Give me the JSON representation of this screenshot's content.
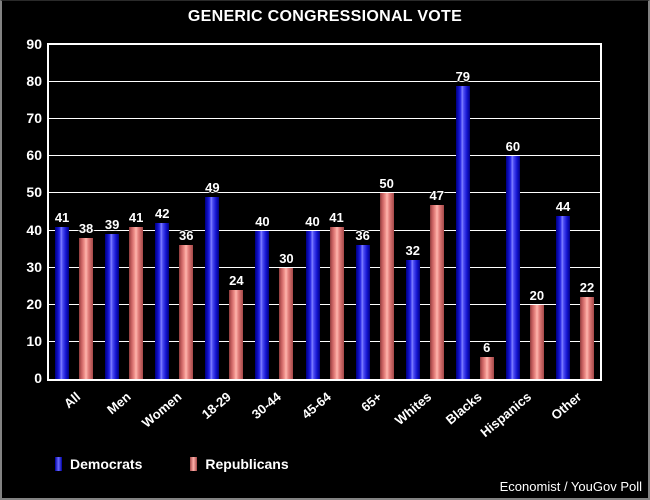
{
  "window": {
    "background": "#000000",
    "border_color": "#828282"
  },
  "chart_data": {
    "type": "bar",
    "title": "GENERIC CONGRESSIONAL VOTE",
    "categories": [
      "All",
      "Men",
      "Women",
      "18-29",
      "30-44",
      "45-64",
      "65+",
      "Whites",
      "Blacks",
      "Hispanics",
      "Other"
    ],
    "series": [
      {
        "name": "Democrats",
        "color": "#1a1ae0",
        "values": [
          41,
          39,
          42,
          49,
          40,
          40,
          36,
          32,
          79,
          60,
          44
        ]
      },
      {
        "name": "Republicans",
        "color": "#ee8c86",
        "values": [
          38,
          41,
          36,
          24,
          30,
          41,
          50,
          47,
          6,
          20,
          22
        ]
      }
    ],
    "xlabel": "",
    "ylabel": "",
    "ylim": [
      0,
      90
    ],
    "yticks": [
      0,
      10,
      20,
      30,
      40,
      50,
      60,
      70,
      80,
      90
    ],
    "grid": true,
    "grid_color": "#ffffff",
    "value_labels": true,
    "legend_position": "bottom-left",
    "text_color": "#ffffff"
  },
  "footer": {
    "credit": "Economist / YouGov Poll"
  }
}
